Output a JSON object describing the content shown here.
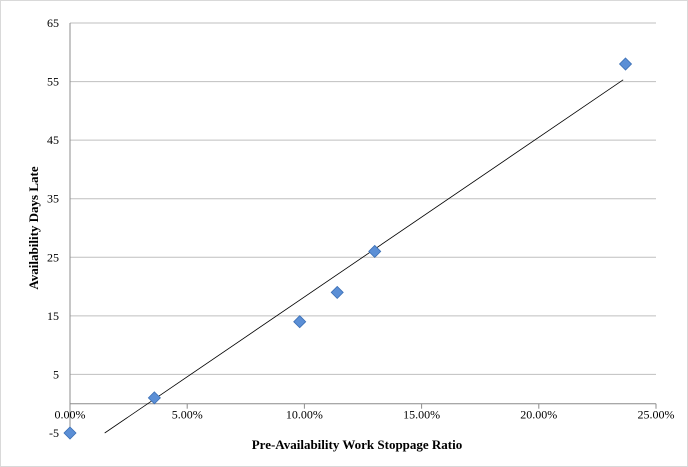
{
  "chart_data": {
    "type": "scatter",
    "title": "",
    "xlabel": "Pre-Availability  Work Stoppage Ratio",
    "ylabel": "Availability Days Late",
    "xlim": [
      0,
      0.25
    ],
    "ylim": [
      -5,
      65
    ],
    "x_ticks": [
      0,
      0.05,
      0.1,
      0.15,
      0.2,
      0.25
    ],
    "x_tick_labels": [
      "0.00%",
      "5.00%",
      "10.00%",
      "15.00%",
      "20.00%",
      "25.00%"
    ],
    "y_ticks": [
      -5,
      5,
      15,
      25,
      35,
      45,
      55,
      65
    ],
    "y_tick_labels": [
      "-5",
      "5",
      "15",
      "25",
      "35",
      "45",
      "55",
      "65"
    ],
    "grid": "horizontal",
    "legend": "none",
    "series": [
      {
        "marker": "diamond",
        "color": "#5b8fd6",
        "x": [
          0.0,
          0.036,
          0.098,
          0.114,
          0.13,
          0.237
        ],
        "y": [
          -5,
          1,
          14,
          19,
          26,
          58
        ]
      }
    ],
    "trendline": {
      "type": "linear",
      "color": "#000000",
      "x": [
        0.0148,
        0.236
      ],
      "y": [
        -5,
        55.3
      ]
    }
  }
}
